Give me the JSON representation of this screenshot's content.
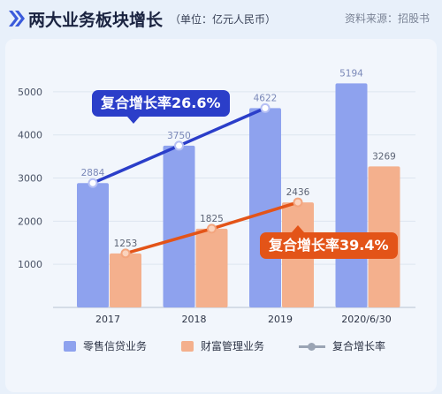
{
  "header": {
    "title": "两大业务板块增长",
    "unit": "（单位：亿元人民币）",
    "source": "资料来源：招股书"
  },
  "colors": {
    "retail": "#8ea2ee",
    "wealth": "#f4b08d",
    "retail_line": "#2b3ec9",
    "wealth_line": "#e35418",
    "title_accent": "#3b5bdb"
  },
  "chart_data": {
    "type": "bar",
    "categories": [
      "2017",
      "2018",
      "2019",
      "2020/6/30"
    ],
    "series": [
      {
        "name": "零售信贷业务",
        "values": [
          2884,
          3750,
          4622,
          5194
        ]
      },
      {
        "name": "财富管理业务",
        "values": [
          1253,
          1825,
          2436,
          3269
        ]
      }
    ],
    "line_label": "复合增长率",
    "retail_growth_label": "复合增长率26.6%",
    "wealth_growth_label": "复合增长率39.4%",
    "yticks": [
      1000,
      2000,
      3000,
      4000,
      5000
    ],
    "ylim": [
      0,
      5400
    ],
    "grid": true,
    "legend_position": "bottom"
  }
}
